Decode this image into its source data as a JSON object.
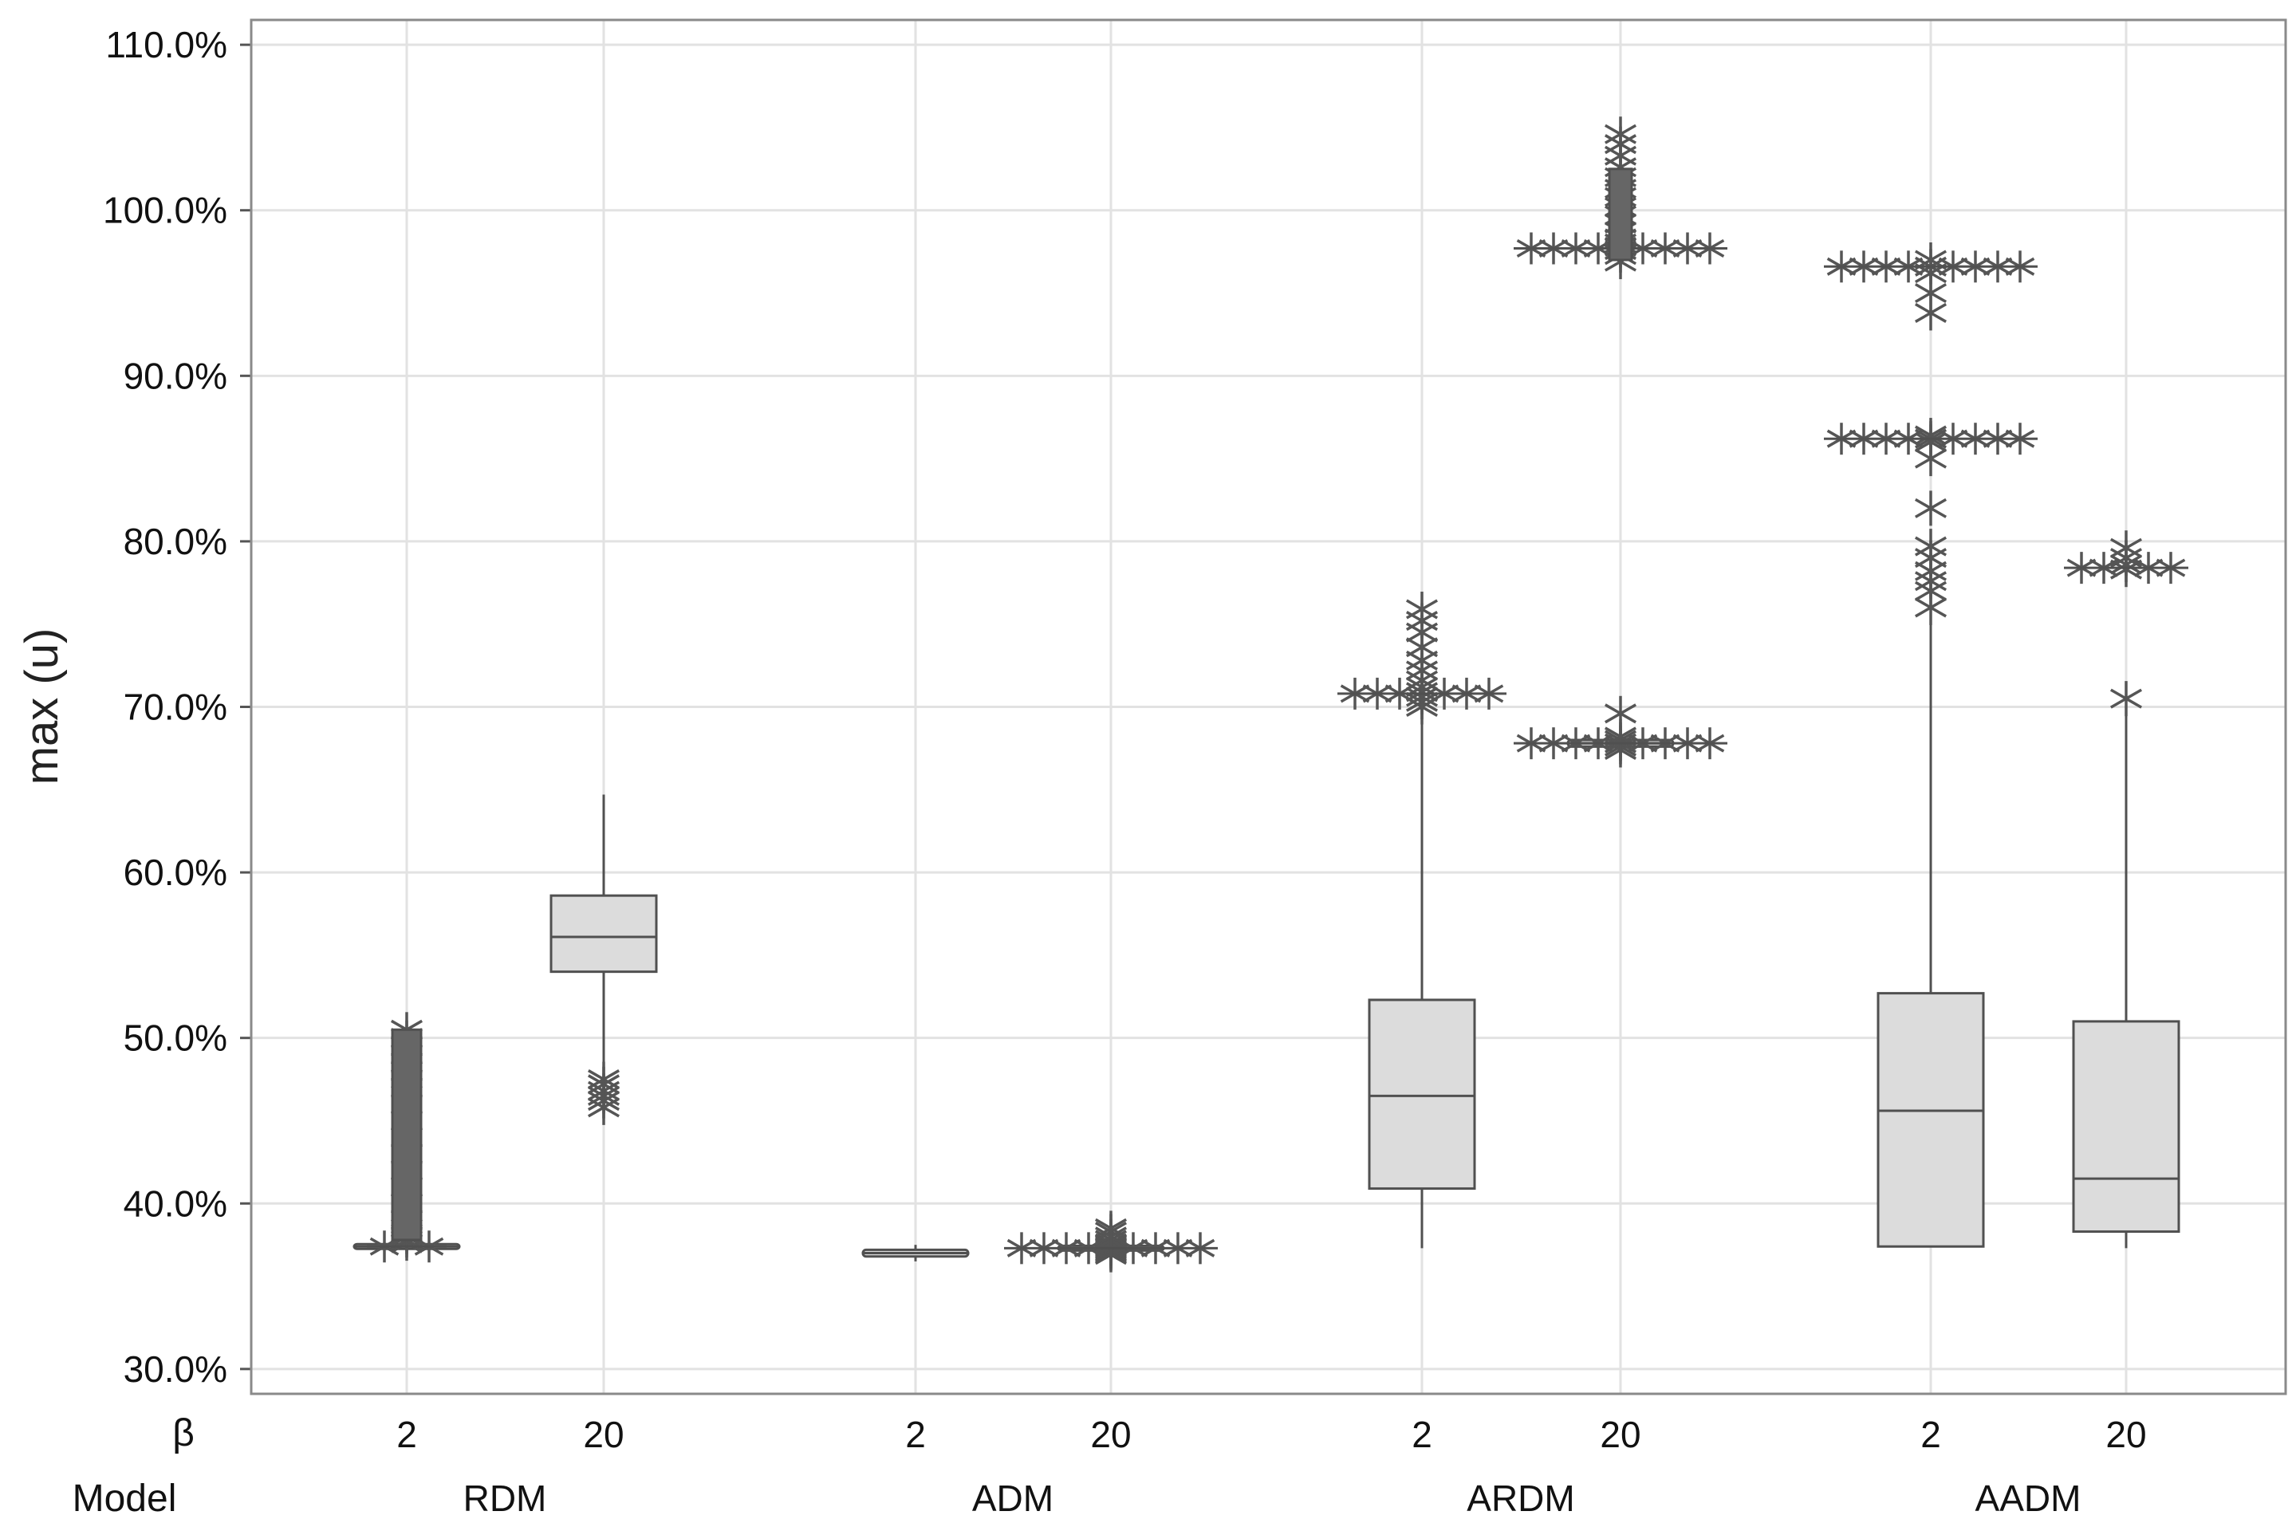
{
  "chart_data": {
    "type": "boxplot",
    "ylabel": "max (u)",
    "ylim": [
      28.5,
      111.5
    ],
    "y_ticks": [
      30,
      40,
      50,
      60,
      70,
      80,
      90,
      100,
      110
    ],
    "y_tick_labels": [
      "30.0%",
      "40.0%",
      "50.0%",
      "60.0%",
      "70.0%",
      "80.0%",
      "90.0%",
      "100.0%",
      "110.0%"
    ],
    "grid": true,
    "row_labels": {
      "beta": "β",
      "model": "Model"
    },
    "models": [
      "RDM",
      "ADM",
      "ARDM",
      "AADM"
    ],
    "groups": [
      {
        "model": "RDM",
        "beta": "2",
        "q1": 37.3,
        "median": 37.4,
        "q3": 37.5,
        "whisker_low": 37.3,
        "whisker_high": 37.5,
        "outliers": [
          37.6,
          37.8,
          38.0,
          38.2,
          38.5,
          39.0,
          40.0,
          41.0,
          42.0,
          43.0,
          44.0,
          45.0,
          46.0,
          47.0,
          47.5,
          48.0,
          48.5,
          49.0,
          49.5,
          50.0,
          50.5
        ]
      },
      {
        "model": "RDM",
        "beta": "20",
        "q1": 54.0,
        "median": 56.1,
        "q3": 58.6,
        "whisker_low": 47.8,
        "whisker_high": 64.7,
        "outliers": [
          45.8,
          46.2,
          46.5,
          46.8,
          47.2,
          47.5
        ]
      },
      {
        "model": "ADM",
        "beta": "2",
        "q1": 36.8,
        "median": 37.0,
        "q3": 37.2,
        "whisker_low": 36.5,
        "whisker_high": 37.5,
        "outliers": []
      },
      {
        "model": "ADM",
        "beta": "20",
        "q1": 37.2,
        "median": 37.3,
        "q3": 37.4,
        "whisker_low": 37.2,
        "whisker_high": 37.4,
        "outliers": [
          36.9,
          37.0,
          37.1,
          37.2,
          37.3,
          37.4,
          37.5,
          37.6,
          37.8,
          38.0,
          38.3,
          38.5
        ]
      },
      {
        "model": "ARDM",
        "beta": "2",
        "q1": 40.9,
        "median": 46.5,
        "q3": 52.3,
        "whisker_low": 37.3,
        "whisker_high": 69.8,
        "outliers": [
          70.0,
          70.3,
          70.6,
          70.9,
          71.2,
          71.6,
          72.2,
          72.8,
          73.6,
          74.5,
          75.2,
          75.9
        ]
      },
      {
        "model": "ARDM",
        "beta": "20",
        "q1": 67.6,
        "median": 67.8,
        "q3": 68.0,
        "whisker_low": 67.6,
        "whisker_high": 68.0,
        "outliers": [
          67.4,
          67.6,
          67.8,
          68.0,
          68.2,
          69.6,
          96.9,
          97.3,
          97.6,
          97.8,
          98.0,
          98.3,
          98.7,
          99.2,
          99.7,
          100.2,
          100.8,
          101.3,
          102.0,
          102.6,
          103.3,
          104.0,
          104.6
        ]
      },
      {
        "model": "AADM",
        "beta": "2",
        "q1": 37.4,
        "median": 45.6,
        "q3": 52.7,
        "whisker_low": 37.4,
        "whisker_high": 75.5,
        "outliers": [
          76.0,
          77.0,
          77.6,
          78.2,
          79.0,
          79.7,
          82.0,
          85.0,
          86.0,
          86.2,
          86.4,
          93.8,
          95.0,
          96.2,
          96.6,
          97.0
        ]
      },
      {
        "model": "AADM",
        "beta": "20",
        "q1": 38.3,
        "median": 41.5,
        "q3": 51.0,
        "whisker_low": 37.3,
        "whisker_high": 69.5,
        "outliers": [
          70.5,
          78.3,
          78.6,
          79.0,
          79.6
        ]
      }
    ]
  }
}
